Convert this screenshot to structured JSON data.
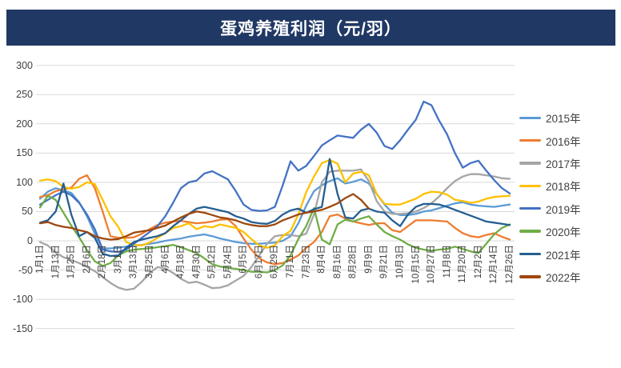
{
  "title_bar": {
    "text": "蛋鸡养殖利润（元/羽）",
    "bg_color": "#203864",
    "text_color": "#FFFFFF"
  },
  "chart_data": {
    "type": "line",
    "title": "蛋鸡养殖利润（元/羽）",
    "ylabel": "",
    "ylim": [
      -150,
      300
    ],
    "grid": "horizontal-only",
    "legend_position": "right",
    "gridline_color": "#D9D9D9",
    "axis_text_color": "#404040",
    "y_ticks": [
      300,
      250,
      200,
      150,
      100,
      50,
      0,
      -50,
      -100,
      -150
    ],
    "x_tick_labels": [
      "1月1日",
      "1月13日",
      "1月25日",
      "2月6日",
      "2月18日",
      "3月1日",
      "3月13日",
      "3月25日",
      "4月6日",
      "4月18日",
      "4月30日",
      "5月12日",
      "5月24日",
      "6月5日",
      "6月17日",
      "6月29日",
      "7月11日",
      "7月23日",
      "8月4日",
      "8月16日",
      "8月28日",
      "9月9日",
      "9月21日",
      "10月3日",
      "10月15日",
      "10月27日",
      "11月8日",
      "11月20日",
      "12月2日",
      "12月14日",
      "12月26日"
    ],
    "points_per_label_interval": 2,
    "series": [
      {
        "name": "2015年",
        "color": "#5B9BD5",
        "values": [
          72,
          84,
          90,
          86,
          82,
          66,
          42,
          12,
          -13,
          -13,
          -12,
          -10,
          -8,
          -7,
          -5,
          -3,
          0,
          2,
          4,
          7,
          9,
          11,
          8,
          4,
          1,
          -2,
          -4,
          -5,
          -5,
          -4,
          -3,
          0,
          8,
          30,
          60,
          85,
          95,
          102,
          107,
          98,
          101,
          105,
          98,
          80,
          62,
          48,
          44,
          44,
          46,
          50,
          52,
          56,
          60,
          64,
          66,
          62,
          60,
          59,
          58,
          60,
          62
        ]
      },
      {
        "name": "2016年",
        "color": "#ED7D31",
        "values": [
          75,
          78,
          85,
          88,
          91,
          106,
          112,
          90,
          50,
          8,
          5,
          5,
          6,
          12,
          20,
          27,
          31,
          33,
          34,
          32,
          30,
          31,
          33,
          36,
          37,
          25,
          4,
          -15,
          -30,
          -37,
          -40,
          -38,
          -32,
          -25,
          -12,
          -2,
          15,
          42,
          45,
          38,
          33,
          30,
          27,
          30,
          30,
          18,
          15,
          25,
          35,
          35,
          35,
          34,
          33,
          22,
          13,
          8,
          6,
          10,
          13,
          7,
          2
        ]
      },
      {
        "name": "2017年",
        "color": "#A5A5A5",
        "values": [
          -2,
          -8,
          -20,
          -28,
          -33,
          -38,
          -45,
          -52,
          -62,
          -72,
          -80,
          -84,
          -82,
          -70,
          -55,
          -45,
          -47,
          -55,
          -65,
          -72,
          -70,
          -75,
          -81,
          -80,
          -76,
          -68,
          -60,
          -45,
          -25,
          -5,
          8,
          10,
          10,
          8,
          12,
          45,
          100,
          118,
          120,
          120,
          120,
          122,
          102,
          68,
          50,
          46,
          46,
          47,
          50,
          56,
          64,
          76,
          90,
          102,
          110,
          114,
          114,
          112,
          110,
          107,
          106
        ]
      },
      {
        "name": "2018年",
        "color": "#FFC000",
        "values": [
          103,
          105,
          102,
          92,
          89,
          92,
          100,
          97,
          70,
          42,
          24,
          -2,
          -7,
          -8,
          -3,
          5,
          13,
          22,
          25,
          30,
          20,
          25,
          23,
          28,
          25,
          22,
          15,
          3,
          -8,
          -12,
          -8,
          8,
          17,
          45,
          83,
          110,
          133,
          138,
          132,
          100,
          115,
          118,
          112,
          80,
          63,
          62,
          62,
          67,
          72,
          80,
          84,
          83,
          79,
          70,
          68,
          65,
          67,
          72,
          75,
          76,
          77
        ]
      },
      {
        "name": "2019年",
        "color": "#4472C4",
        "values": [
          62,
          70,
          78,
          84,
          78,
          65,
          45,
          20,
          -15,
          -18,
          -19,
          -15,
          -5,
          5,
          15,
          25,
          42,
          65,
          90,
          100,
          103,
          115,
          119,
          112,
          105,
          85,
          62,
          53,
          51,
          52,
          58,
          95,
          136,
          120,
          128,
          145,
          163,
          172,
          180,
          178,
          176,
          190,
          200,
          185,
          162,
          157,
          172,
          190,
          207,
          238,
          232,
          205,
          182,
          150,
          125,
          133,
          137,
          120,
          104,
          90,
          81
        ]
      },
      {
        "name": "2020年",
        "color": "#70AD47",
        "values": [
          57,
          77,
          70,
          48,
          26,
          6,
          -16,
          -35,
          -43,
          -38,
          -25,
          -18,
          -15,
          -14,
          -13,
          -11,
          -9,
          -7,
          -11,
          -16,
          -21,
          -30,
          -40,
          -44,
          -46,
          -48,
          -50,
          -53,
          -53,
          -54,
          -50,
          -42,
          -25,
          3,
          25,
          56,
          2,
          -6,
          28,
          36,
          33,
          38,
          42,
          28,
          15,
          8,
          2,
          -6,
          -12,
          -15,
          -17,
          -15,
          -14,
          -10,
          -14,
          -18,
          -21,
          -5,
          11,
          22,
          28
        ]
      },
      {
        "name": "2021年",
        "color": "#255E91",
        "values": [
          31,
          35,
          50,
          98,
          45,
          8,
          15,
          5,
          -22,
          -26,
          -25,
          -12,
          -2,
          2,
          5,
          8,
          13,
          25,
          35,
          46,
          55,
          58,
          55,
          52,
          49,
          42,
          38,
          32,
          30,
          29,
          34,
          45,
          52,
          55,
          48,
          54,
          58,
          140,
          80,
          40,
          38,
          52,
          55,
          50,
          48,
          35,
          25,
          45,
          58,
          63,
          63,
          62,
          58,
          53,
          48,
          43,
          38,
          33,
          31,
          29,
          27
        ]
      },
      {
        "name": "2022年",
        "color": "#9E480E",
        "values": [
          30,
          32,
          27,
          24,
          22,
          18,
          15,
          8,
          4,
          2,
          3,
          8,
          14,
          16,
          18,
          22,
          26,
          33,
          40,
          46,
          50,
          48,
          44,
          40,
          38,
          35,
          30,
          27,
          25,
          25,
          28,
          35,
          40,
          45,
          48,
          50,
          53,
          58,
          64,
          73,
          80,
          70,
          55,
          null,
          null,
          null,
          null,
          null,
          null,
          null,
          null,
          null,
          null,
          null,
          null,
          null,
          null,
          null,
          null,
          null,
          null
        ]
      }
    ]
  }
}
